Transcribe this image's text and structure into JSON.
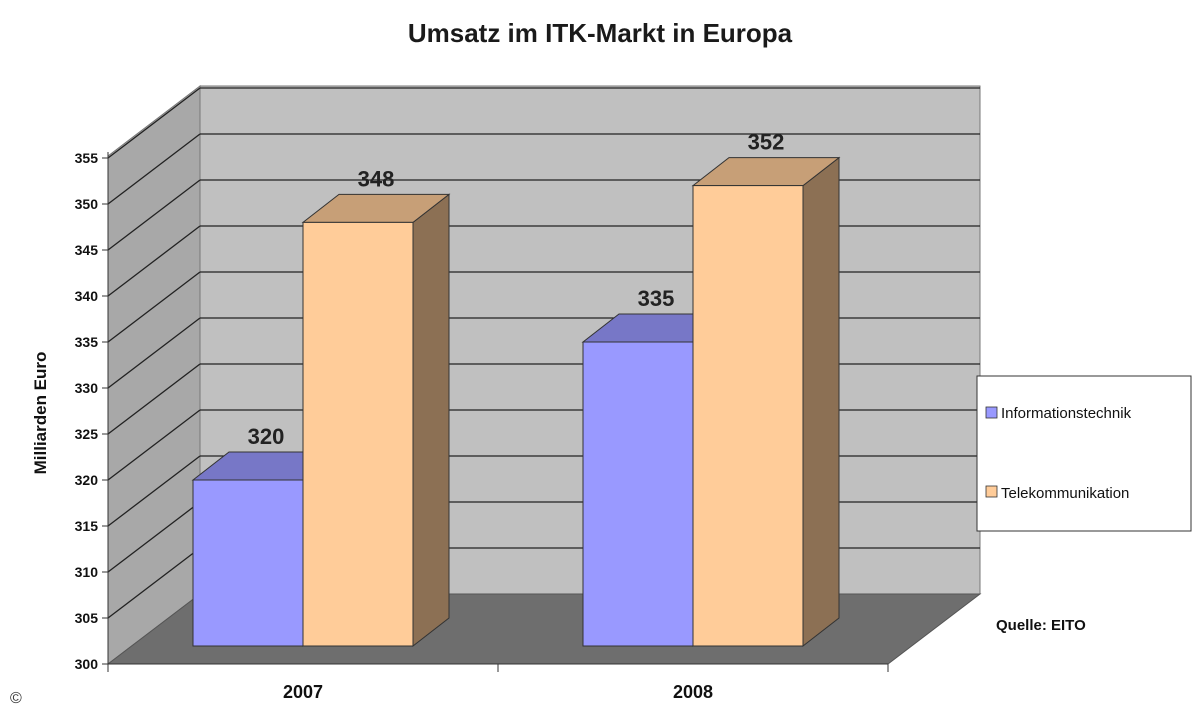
{
  "chart_data": {
    "type": "bar",
    "title": "Umsatz im ITK-Markt in Europa",
    "ylabel": "Milliarden Euro",
    "xlabel": "",
    "categories": [
      "2007",
      "2008"
    ],
    "ylim": [
      300,
      355
    ],
    "ytick_step": 5,
    "grid": true,
    "legend_position": "right",
    "series": [
      {
        "name": "Informationstechnik",
        "values": [
          320,
          335
        ],
        "color": "#9999ff"
      },
      {
        "name": "Telekommunikation",
        "values": [
          348,
          352
        ],
        "color": "#ffcc99"
      }
    ],
    "data_labels": [
      "320",
      "335",
      "348",
      "352"
    ]
  },
  "source": "Quelle: EITO",
  "copyright": "©"
}
